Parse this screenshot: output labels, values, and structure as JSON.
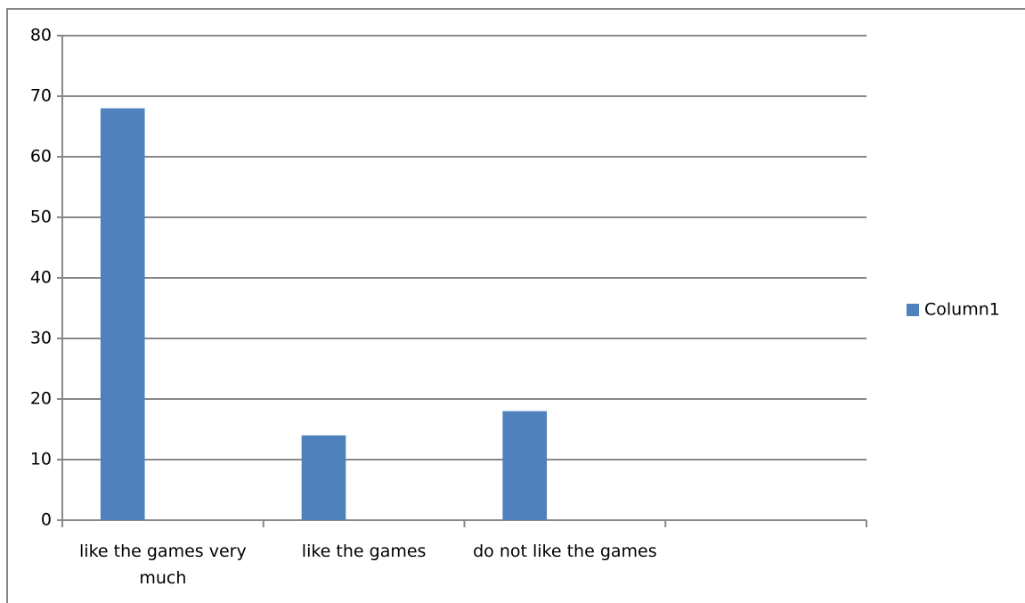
{
  "chart_data": {
    "type": "bar",
    "categories": [
      "like the games very much",
      "like the games",
      "do not like the games",
      null
    ],
    "series": [
      {
        "name": "Column1",
        "color": "#4f81bd",
        "values": [
          68,
          14,
          18,
          null
        ]
      }
    ],
    "ylim": [
      0,
      80
    ],
    "yticks": [
      0,
      10,
      20,
      30,
      40,
      50,
      60,
      70,
      80
    ],
    "grid": true,
    "legend": "right"
  }
}
